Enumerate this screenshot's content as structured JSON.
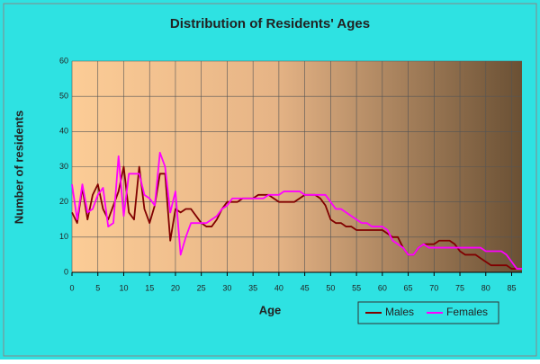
{
  "chart_data": {
    "type": "line",
    "title": "Distribution of Residents' Ages",
    "x_label": "Age",
    "y_label": "Number of residents",
    "x": [
      0,
      1,
      2,
      3,
      4,
      5,
      6,
      7,
      8,
      9,
      10,
      11,
      12,
      13,
      14,
      15,
      16,
      17,
      18,
      19,
      20,
      21,
      22,
      23,
      24,
      25,
      26,
      27,
      28,
      29,
      30,
      31,
      32,
      33,
      34,
      35,
      36,
      37,
      38,
      39,
      40,
      41,
      42,
      43,
      44,
      45,
      46,
      47,
      48,
      49,
      50,
      51,
      52,
      53,
      54,
      55,
      56,
      57,
      58,
      59,
      60,
      61,
      62,
      63,
      64,
      65,
      66,
      67,
      68,
      69,
      70,
      71,
      72,
      73,
      74,
      75,
      76,
      77,
      78,
      79,
      80,
      81,
      82,
      83,
      84,
      85,
      86,
      87
    ],
    "series": [
      {
        "name": "Males",
        "color": "#800000",
        "values": [
          17,
          14,
          24,
          15,
          22,
          25,
          18,
          15,
          19,
          23,
          30,
          17,
          15,
          30,
          18,
          14,
          19,
          28,
          28,
          9,
          18,
          17,
          18,
          18,
          16,
          14,
          13,
          13,
          15,
          18,
          20,
          20,
          20,
          21,
          21,
          21,
          22,
          22,
          22,
          21,
          20,
          20,
          20,
          20,
          21,
          22,
          22,
          22,
          21,
          19,
          15,
          14,
          14,
          13,
          13,
          12,
          12,
          12,
          12,
          12,
          12,
          11,
          10,
          10,
          7,
          5,
          5,
          7,
          8,
          8,
          8,
          9,
          9,
          9,
          8,
          6,
          5,
          5,
          5,
          4,
          3,
          2,
          2,
          2,
          2,
          1,
          1,
          1
        ]
      },
      {
        "name": "Females",
        "color": "#ff00ff",
        "values": [
          25,
          15,
          25,
          17,
          18,
          22,
          24,
          13,
          14,
          33,
          16,
          28,
          28,
          28,
          22,
          21,
          19,
          34,
          30,
          17,
          23,
          5,
          10,
          14,
          14,
          14,
          14,
          15,
          16,
          18,
          19,
          21,
          21,
          21,
          21,
          21,
          21,
          21,
          22,
          22,
          22,
          23,
          23,
          23,
          23,
          22,
          22,
          22,
          22,
          22,
          20,
          18,
          18,
          17,
          16,
          15,
          14,
          14,
          13,
          13,
          13,
          12,
          9,
          8,
          7,
          5,
          5,
          7,
          8,
          7,
          7,
          7,
          7,
          7,
          7,
          7,
          7,
          7,
          7,
          7,
          6,
          6,
          6,
          6,
          5,
          3,
          1,
          1
        ]
      }
    ],
    "xlim": [
      0,
      87
    ],
    "ylim": [
      0,
      60
    ],
    "xticks": [
      0,
      5,
      10,
      15,
      20,
      25,
      30,
      35,
      40,
      45,
      50,
      55,
      60,
      65,
      70,
      75,
      80,
      85
    ],
    "yticks": [
      0,
      10,
      20,
      30,
      40,
      50,
      60
    ],
    "grid": true,
    "legend": "bottom-right"
  }
}
